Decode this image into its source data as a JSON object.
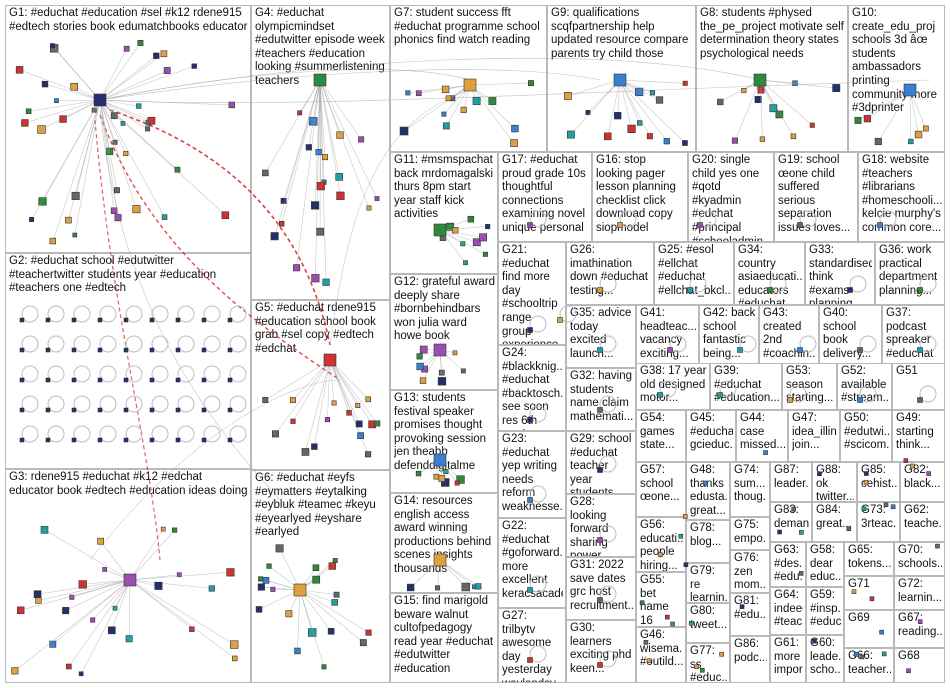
{
  "groups": [
    {
      "id": "G1",
      "label": "G1: #educhat #education #sel #k12 rdene915 #edtech stories book edumatchbooks educator"
    },
    {
      "id": "G2",
      "label": "G2: #educhat school #edutwitter #teachertwitter students year #education #teachers one #edtech"
    },
    {
      "id": "G3",
      "label": "G3: rdene915 #educhat #k12 #edchat educator book #edtech #education ideas doing"
    },
    {
      "id": "G4",
      "label": "G4: #educhat olympicmindset #edutwitter episode week #teachers #education looking #summerlistening teachers"
    },
    {
      "id": "G5",
      "label": "G5: #educhat rdene915 #education school book grab #sel copy #edtech #edchat"
    },
    {
      "id": "G6",
      "label": "G6: #educhat #eyfs #eymatters #eytalking #eybluk #teamec #keyu #eyearlyed #eyshare #earlyed"
    },
    {
      "id": "G7",
      "label": "G7: student success fft #educhat programme school phonics find watch reading"
    },
    {
      "id": "G8",
      "label": "G8: students #physed the_pe_project motivate self determination theory states psychological needs"
    },
    {
      "id": "G9",
      "label": "G9: qualifications scqfpartnership help updated resource compare parents try child those"
    },
    {
      "id": "G10",
      "label": "G10: create_edu_proj schools 3d âœ students ambassadors printing community more #3dprinter"
    },
    {
      "id": "G11",
      "label": "G11: #msmspachat back mrdomagalski thurs 8pm start year staff kick activities"
    },
    {
      "id": "G12",
      "label": "G12: grateful award deeply share #bornbehindbars won julia ward howe book"
    },
    {
      "id": "G13",
      "label": "G13: students festival speaker promises thought provoking session jen theabb defenddigitalme"
    },
    {
      "id": "G14",
      "label": "G14: resources english access award winning productions behind scenes insights thousands"
    },
    {
      "id": "G15",
      "label": "G15: find marigold beware walnut cultofpedagogy read year #educhat #edutwitter #education"
    },
    {
      "id": "G16",
      "label": "G16: stop looking pager lesson planning checklist click download copy siopmodel"
    },
    {
      "id": "G17",
      "label": "G17: #educhat proud grade 10s thoughtful connections examining novel unique personal"
    },
    {
      "id": "G18",
      "label": "G18: website #teachers #librarians #homeschooli... kelcie murphy's common core..."
    },
    {
      "id": "G19",
      "label": "G19: school œone child suffered serious separation issues loves..."
    },
    {
      "id": "G20",
      "label": "G20: single child yes one #qotd #kyadmin #edchat #principal #schooladmin..."
    },
    {
      "id": "G21",
      "label": "G21: #educhat find more day #schooltrip range group experience..."
    },
    {
      "id": "G22",
      "label": "G22: #educhat #goforward... more excellent keracsacadem..."
    },
    {
      "id": "G23",
      "label": "G23: #educhat yep writing needs reform weaknesse..."
    },
    {
      "id": "G24",
      "label": "G24: #blackknig... #educhat #backtosch... see soon res 6th graders..."
    },
    {
      "id": "G25",
      "label": "G25: #esol #ellchat #educhat #ellchat_bkcl..."
    },
    {
      "id": "G26",
      "label": "G26: imathination down #educhat testing..."
    },
    {
      "id": "G27",
      "label": "G27: trilbytv awesome day yesterday waylandsy..."
    },
    {
      "id": "G28",
      "label": "G28: looking forward sharing power..."
    },
    {
      "id": "G29",
      "label": "G29: school #educhat teacher year students..."
    },
    {
      "id": "G30",
      "label": "G30: learners exciting phd keen..."
    },
    {
      "id": "G31",
      "label": "G31: 2022 save dates grc host recruitment..."
    },
    {
      "id": "G32",
      "label": "G32: having students name claim mathemati..."
    },
    {
      "id": "G33",
      "label": "G33: standardised think #exams planning..."
    },
    {
      "id": "G34",
      "label": "G34: country asiaeducati... educators #educhat..."
    },
    {
      "id": "G35",
      "label": "G35: advice today excited launch..."
    },
    {
      "id": "G36",
      "label": "G36: work practical department planning..."
    },
    {
      "id": "G37",
      "label": "G37: podcast spreaker #educhat"
    },
    {
      "id": "G38",
      "label": "G38: 17 year old designed motor..."
    },
    {
      "id": "G39",
      "label": "G39: #educhat #education..."
    },
    {
      "id": "G40",
      "label": "G40: school book delivery..."
    },
    {
      "id": "G41",
      "label": "G41: headteac... vacancy exciting..."
    },
    {
      "id": "G42",
      "label": "G42: back school fantastic being..."
    },
    {
      "id": "G43",
      "label": "G43: created 2nd #coachin..."
    },
    {
      "id": "G44",
      "label": "G44: case missed..."
    },
    {
      "id": "G45",
      "label": "G45: #educhat gcieduc..."
    },
    {
      "id": "G46",
      "label": "G46: wisema... #outild..."
    },
    {
      "id": "G47",
      "label": "G47: idea_illini join..."
    },
    {
      "id": "G48",
      "label": "G48: thanks edusta... great..."
    },
    {
      "id": "G49",
      "label": "G49: starting think..."
    },
    {
      "id": "G50",
      "label": "G50: #edutwi... #scicom..."
    },
    {
      "id": "G51",
      "label": "G51"
    },
    {
      "id": "G52",
      "label": "G52: available #stream..."
    },
    {
      "id": "G53",
      "label": "G53: season starting..."
    },
    {
      "id": "G54",
      "label": "G54: games state..."
    },
    {
      "id": "G55",
      "label": "G55: bet name 16 #format..."
    },
    {
      "id": "G56",
      "label": "G56: educati... people hiring..."
    },
    {
      "id": "G57",
      "label": "G57: school œone..."
    },
    {
      "id": "G58",
      "label": "G58: dear educ..."
    },
    {
      "id": "G59",
      "label": "G59: #insp... #educ..."
    },
    {
      "id": "G60",
      "label": "G60: leade... scho..."
    },
    {
      "id": "G61",
      "label": "G61: more impor..."
    },
    {
      "id": "G62",
      "label": "G62: teache..."
    },
    {
      "id": "G63",
      "label": "G63: #des... #edu..."
    },
    {
      "id": "G64",
      "label": "G64: indeed #teac..."
    },
    {
      "id": "G65",
      "label": "G65: tokens..."
    },
    {
      "id": "G66",
      "label": "G66: teacher..."
    },
    {
      "id": "G67",
      "label": "G67: reading..."
    },
    {
      "id": "G68",
      "label": "G68"
    },
    {
      "id": "G69",
      "label": "G69"
    },
    {
      "id": "G70",
      "label": "G70: schools..."
    },
    {
      "id": "G71",
      "label": "G71"
    },
    {
      "id": "G72",
      "label": "G72: learnin..."
    },
    {
      "id": "G73",
      "label": "G73: 3rteac..."
    },
    {
      "id": "G74",
      "label": "G74: sum... thoug..."
    },
    {
      "id": "G75",
      "label": "G75: empo..."
    },
    {
      "id": "G76",
      "label": "G76: zen mom..."
    },
    {
      "id": "G77",
      "label": "G77: ss #educ..."
    },
    {
      "id": "G78",
      "label": "G78: blog..."
    },
    {
      "id": "G79",
      "label": "G79: re learnin..."
    },
    {
      "id": "G80",
      "label": "G80: tweet..."
    },
    {
      "id": "G81",
      "label": "G81: #edu..."
    },
    {
      "id": "G82",
      "label": "G82: black..."
    },
    {
      "id": "G83",
      "label": "G83: deman..."
    },
    {
      "id": "G84",
      "label": "G84: great..."
    },
    {
      "id": "G85",
      "label": "G85: cehist..."
    },
    {
      "id": "G86",
      "label": "G86: podc..."
    },
    {
      "id": "G87",
      "label": "G87: leader..."
    },
    {
      "id": "G88",
      "label": "G88: ok twitter..."
    }
  ],
  "colors": {
    "edge_gray": "#9a9a9a",
    "edge_red": "#d42020",
    "border": "#b9b9b9",
    "node_blue": "#23306e",
    "node_orange": "#e0a040",
    "node_green": "#2d8a3a",
    "node_purple": "#9a4fb0"
  }
}
